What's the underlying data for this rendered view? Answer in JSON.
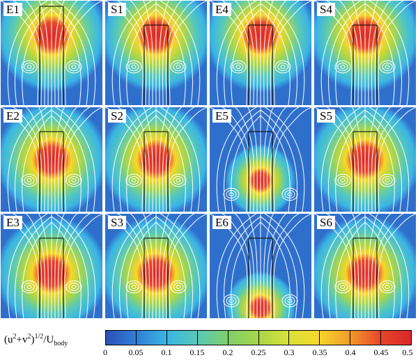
{
  "panels": [
    {
      "label": "E1"
    },
    {
      "label": "S1"
    },
    {
      "label": "E4"
    },
    {
      "label": "S4"
    },
    {
      "label": "E2"
    },
    {
      "label": "S2"
    },
    {
      "label": "E5"
    },
    {
      "label": "S5"
    },
    {
      "label": "E3"
    },
    {
      "label": "S3"
    },
    {
      "label": "E6"
    },
    {
      "label": "S6"
    }
  ],
  "colorbar": {
    "title_main": "(u",
    "title_exp1": "2",
    "title_mid": "+v",
    "title_exp2": "2",
    "title_close": ")",
    "title_exp3": "1/2",
    "title_slash": "/U",
    "title_sub": "body",
    "ticks": [
      "0",
      "0.05",
      "0.1",
      "0.15",
      "0.2",
      "0.25",
      "0.3",
      "0.35",
      "0.4",
      "0.45",
      "0.5"
    ],
    "colors": [
      "#2b4fb8",
      "#2f7fd6",
      "#3bb4e4",
      "#58c9b8",
      "#7fcf6a",
      "#a8d64a",
      "#d9e23a",
      "#f6d72a",
      "#f39a2a",
      "#e8452a",
      "#d8282a"
    ]
  }
}
